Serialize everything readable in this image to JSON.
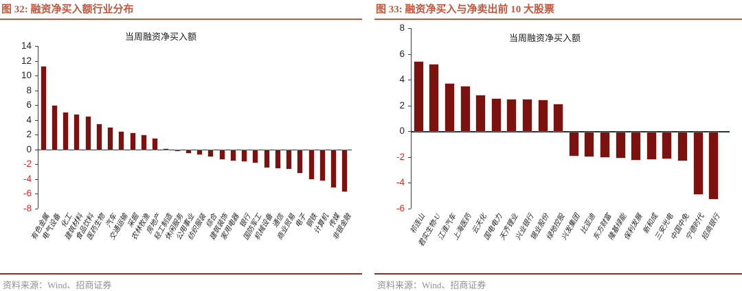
{
  "colors": {
    "bar": "#7c1210",
    "title": "#c0573e",
    "title_underline": "#c0573e",
    "source_line": "#8c2d1d",
    "source_text": "#8f8f8f",
    "axis_label": "#20202a",
    "axis_label_negative": "#ea221a",
    "axis_line": "#3d3d3d",
    "x_label": "#262626"
  },
  "figures": [
    {
      "title": "图 32: 融资净买入额行业分布",
      "source": "资料来源：Wind、招商证券"
    },
    {
      "title": "图 33: 融资净买入与净卖出前 10 大股票",
      "source": "资料来源：Wind、招商证券"
    }
  ],
  "chart_data": [
    {
      "type": "bar",
      "title": "图 32: 融资净买入额行业分布",
      "legend": [
        "当周融资净买入额"
      ],
      "legend_position": "top-center",
      "grid": false,
      "ylim": [
        -8,
        14
      ],
      "ytick_step": 2,
      "categories": [
        "有色金属",
        "电气设备",
        "化工",
        "建筑材料",
        "食品饮料",
        "医药生物",
        "汽车",
        "交通运输",
        "采掘",
        "农林牧渔",
        "房地产",
        "轻工制造",
        "休闲服务",
        "公用事业",
        "纺织服装",
        "综合",
        "建筑装饰",
        "家用电器",
        "银行",
        "国防军工",
        "机械设备",
        "通信",
        "商业贸易",
        "电子",
        "钢铁",
        "计算机",
        "传媒",
        "非银金融"
      ],
      "values": [
        11.2,
        5.9,
        5.0,
        4.7,
        4.4,
        3.4,
        3.0,
        2.4,
        2.2,
        1.9,
        1.5,
        0.1,
        -0.1,
        -0.35,
        -0.55,
        -0.8,
        -1.2,
        -1.4,
        -1.5,
        -1.6,
        -2.3,
        -2.4,
        -2.5,
        -3.0,
        -3.9,
        -4.1,
        -5.0,
        -5.5
      ]
    },
    {
      "type": "bar",
      "title": "图 33: 融资净买入与净卖出前 10 大股票",
      "legend": [
        "当周融资净买入额"
      ],
      "legend_position": "top-center",
      "grid": false,
      "ylim": [
        -6,
        8
      ],
      "ytick_step": 2,
      "categories": [
        "祁连山",
        "君实生物-U",
        "江淮汽车",
        "上海医药",
        "云天化",
        "国电电力",
        "天齐锂业",
        "兴业银行",
        "锡业股份",
        "绿地控股",
        "兴发集团",
        "比亚迪",
        "东方财富",
        "隆基绿能",
        "保利发展",
        "新和成",
        "三安光电",
        "中国中免",
        "宁德时代",
        "招商银行"
      ],
      "values": [
        5.4,
        5.2,
        3.7,
        3.5,
        2.8,
        2.5,
        2.45,
        2.45,
        2.4,
        2.1,
        -1.8,
        -1.9,
        -1.95,
        -2.0,
        -2.15,
        -2.1,
        -2.05,
        -2.2,
        -4.8,
        -5.2
      ]
    }
  ]
}
